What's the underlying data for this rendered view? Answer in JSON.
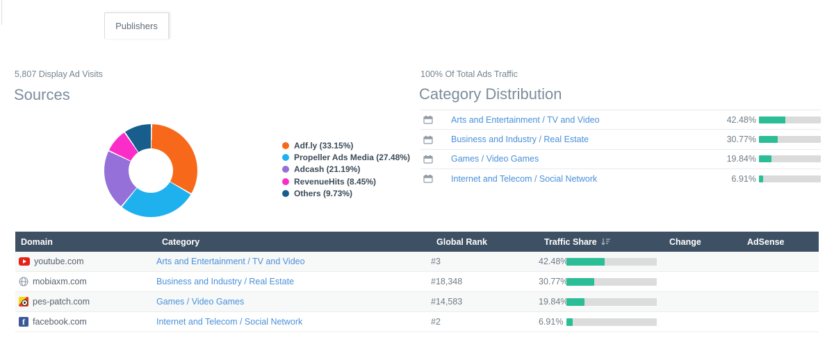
{
  "tab": {
    "label": "Publishers"
  },
  "colors": {
    "accent_green": "#2abd96",
    "bar_track": "#dcdcdc",
    "table_header_bg": "#3e5063",
    "link_blue": "#4a90d9"
  },
  "sources": {
    "subtitle": "5,807 Display Ad Visits",
    "title": "Sources",
    "slices": [
      {
        "name": "Adf.ly",
        "pct": 33.15,
        "label": "Adf.ly (33.15%)",
        "color": "#f8681a"
      },
      {
        "name": "Propeller Ads Media",
        "pct": 27.48,
        "label": "Propeller Ads Media (27.48%)",
        "color": "#1fb0ee"
      },
      {
        "name": "Adcash",
        "pct": 21.19,
        "label": "Adcash (21.19%)",
        "color": "#9470d8"
      },
      {
        "name": "RevenueHits",
        "pct": 8.45,
        "label": "RevenueHits (8.45%)",
        "color": "#fb2dc9"
      },
      {
        "name": "Others",
        "pct": 9.73,
        "label": "Others (9.73%)",
        "color": "#175e8d"
      }
    ]
  },
  "category_distribution": {
    "subtitle": "100% Of Total Ads Traffic",
    "title": "Category Distribution",
    "rows": [
      {
        "label": "Arts and Entertainment / TV and Video",
        "pct": 42.48,
        "pct_label": "42.48%"
      },
      {
        "label": "Business and Industry / Real Estate",
        "pct": 30.77,
        "pct_label": "30.77%"
      },
      {
        "label": "Games / Video Games",
        "pct": 19.84,
        "pct_label": "19.84%"
      },
      {
        "label": "Internet and Telecom / Social Network",
        "pct": 6.91,
        "pct_label": "6.91%"
      }
    ]
  },
  "table": {
    "columns": {
      "domain": "Domain",
      "category": "Category",
      "global_rank": "Global Rank",
      "traffic_share": "Traffic Share",
      "change": "Change",
      "adsense": "AdSense"
    },
    "sorted_by": "traffic_share",
    "rows": [
      {
        "favicon": "youtube-icon",
        "domain": "youtube.com",
        "category": "Arts and Entertainment / TV and Video",
        "global_rank": "#3",
        "traffic_share_label": "42.48%",
        "traffic_share_pct": 42.48,
        "change": "",
        "adsense": ""
      },
      {
        "favicon": "globe-icon",
        "domain": "mobiaxm.com",
        "category": "Business and Industry / Real Estate",
        "global_rank": "#18,348",
        "traffic_share_label": "30.77%",
        "traffic_share_pct": 30.77,
        "change": "",
        "adsense": ""
      },
      {
        "favicon": "pes-patch-icon",
        "domain": "pes-patch.com",
        "category": "Games / Video Games",
        "global_rank": "#14,583",
        "traffic_share_label": "19.84%",
        "traffic_share_pct": 19.84,
        "change": "",
        "adsense": ""
      },
      {
        "favicon": "facebook-icon",
        "domain": "facebook.com",
        "category": "Internet and Telecom / Social Network",
        "global_rank": "#2",
        "traffic_share_label": "6.91%",
        "traffic_share_pct": 6.91,
        "change": "",
        "adsense": ""
      }
    ]
  },
  "chart_data": [
    {
      "type": "pie",
      "title": "Sources",
      "labels": [
        "Adf.ly",
        "Propeller Ads Media",
        "Adcash",
        "RevenueHits",
        "Others"
      ],
      "values": [
        33.15,
        27.48,
        21.19,
        8.45,
        9.73
      ],
      "colors": [
        "#f8681a",
        "#1fb0ee",
        "#9470d8",
        "#fb2dc9",
        "#175e8d"
      ],
      "legend_position": "right",
      "donut": true
    },
    {
      "type": "bar",
      "title": "Category Distribution",
      "categories": [
        "Arts and Entertainment / TV and Video",
        "Business and Industry / Real Estate",
        "Games / Video Games",
        "Internet and Telecom / Social Network"
      ],
      "values": [
        42.48,
        30.77,
        19.84,
        6.91
      ],
      "xlabel": "",
      "ylabel": "Traffic Share (%)",
      "xlim": [
        0,
        100
      ],
      "orientation": "horizontal"
    }
  ]
}
